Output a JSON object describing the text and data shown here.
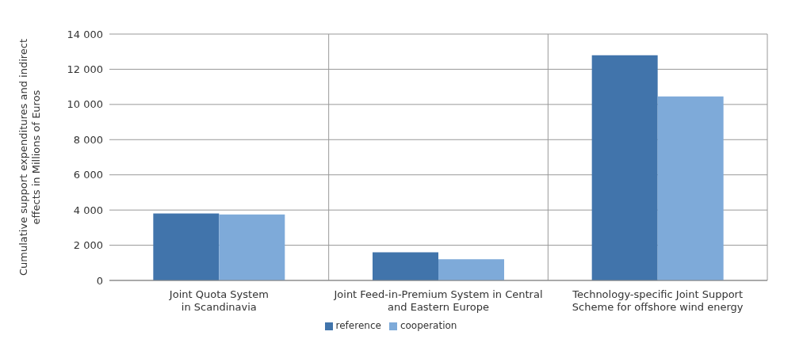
{
  "chart_data": {
    "type": "bar",
    "ylabel": "Cumulative support expenditures and indirect\neffects in Millions of Euros",
    "categories": [
      "Joint Quota System\nin Scandinavia",
      "Joint Feed-in-Premium System in Central\nand Eastern Europe",
      "Technology-specific Joint Support\nScheme for offshore wind energy"
    ],
    "series": [
      {
        "name": "reference",
        "color": "#4174ab",
        "values": [
          3800,
          1600,
          12800
        ]
      },
      {
        "name": "cooperation",
        "color": "#7eaad9",
        "values": [
          3750,
          1200,
          10450
        ]
      }
    ],
    "ylim": [
      0,
      14000
    ],
    "yticks": [
      0,
      {
        "value": 2000,
        "label": "2 000"
      },
      {
        "value": 4000,
        "label": "4 000"
      },
      {
        "value": 6000,
        "label": "6 000"
      },
      {
        "value": 8000,
        "label": "8 000"
      },
      {
        "value": 10000,
        "label": "10 000"
      },
      {
        "value": 12000,
        "label": "12 000"
      },
      {
        "value": 14000,
        "label": "14 000"
      }
    ],
    "grid": true,
    "legend": "bottom"
  }
}
